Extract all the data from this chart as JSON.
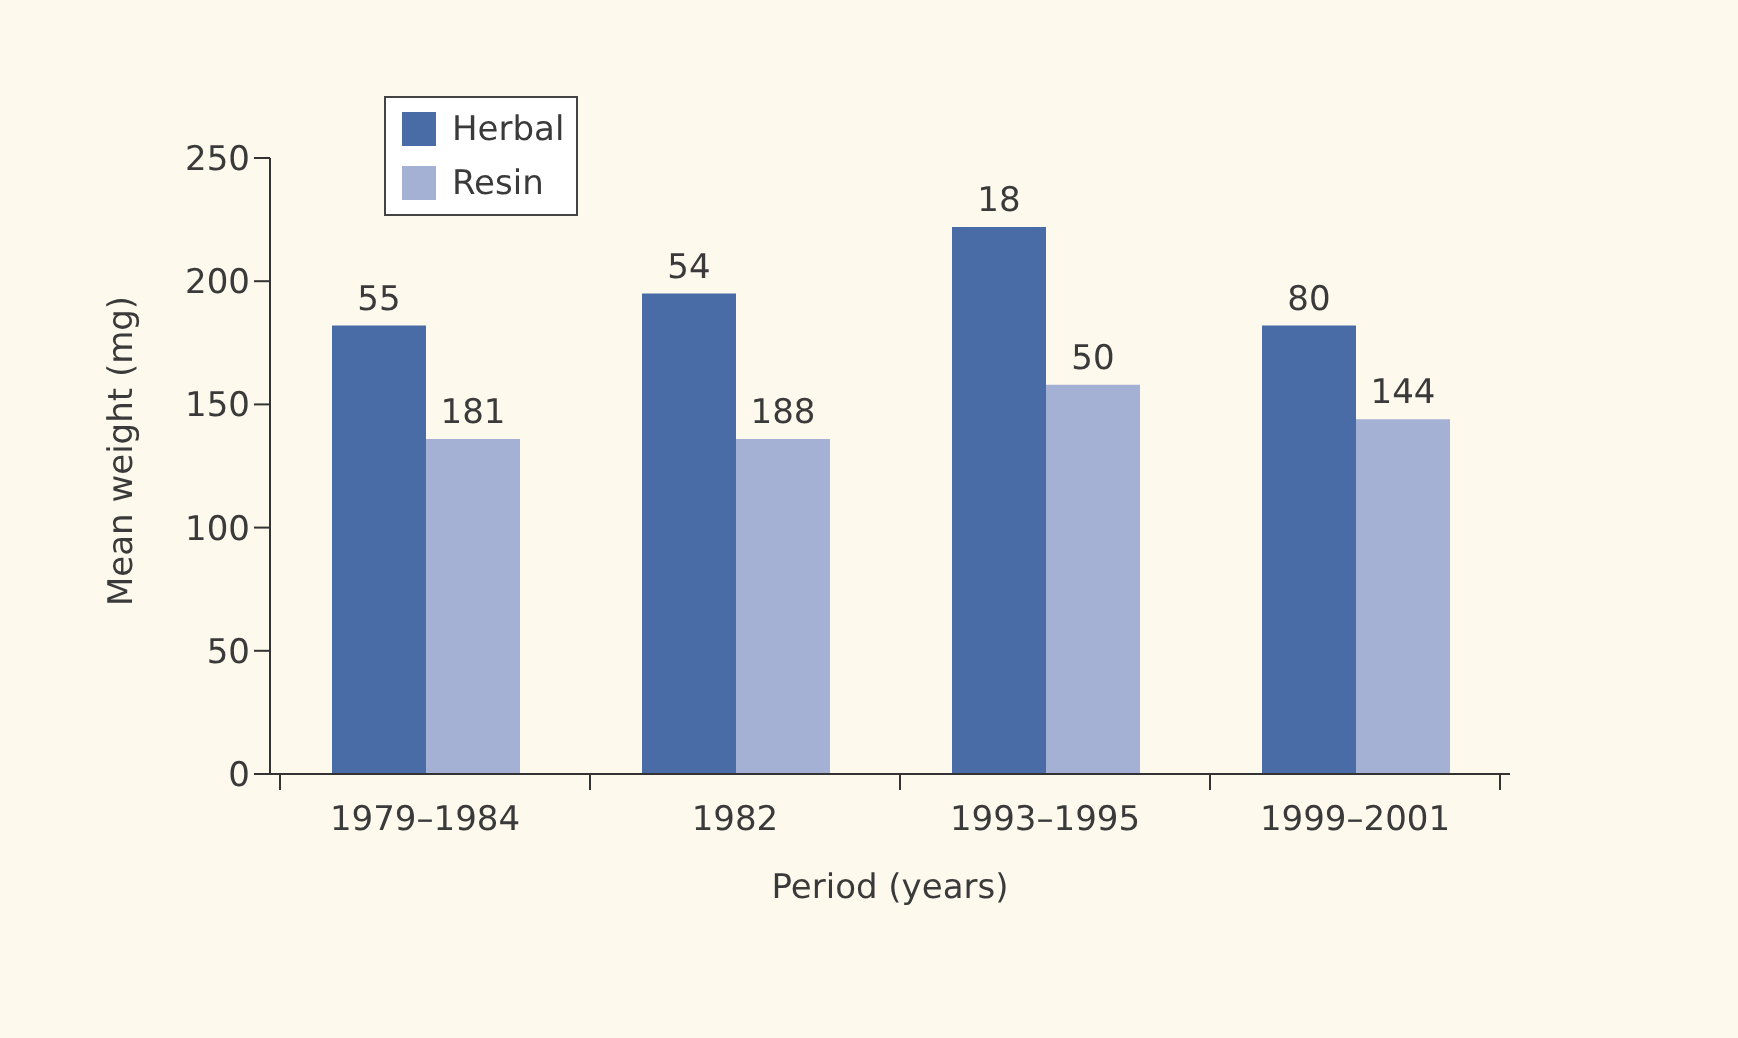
{
  "chart_data": {
    "type": "bar",
    "xlabel": "Period (years)",
    "ylabel": "Mean weight (mg)",
    "categories": [
      "1979–1984",
      "1982",
      "1993–1995",
      "1999–2001"
    ],
    "series": [
      {
        "name": "Herbal",
        "color": "#4a6ca6",
        "values": [
          182,
          195,
          222,
          182
        ]
      },
      {
        "name": "Resin",
        "color": "#a5b1d4",
        "values": [
          136,
          136,
          158,
          144
        ]
      }
    ],
    "annotations": [
      {
        "text": "55",
        "x": "1979–1984",
        "y": 182
      },
      {
        "text": "181",
        "x": "1979–1984",
        "y": 136
      },
      {
        "text": "54",
        "x": "1982",
        "y": 195
      },
      {
        "text": "188",
        "x": "1982",
        "y": 136
      },
      {
        "text": "18",
        "x": "1993–1995",
        "y": 222
      },
      {
        "text": "50",
        "x": "1993–1995",
        "y": 158
      },
      {
        "text": "80",
        "x": "1999–2001",
        "y": 182
      },
      {
        "text": "144",
        "x": "1999–2001",
        "y": 144
      }
    ],
    "ylim": [
      0,
      250
    ],
    "yticks": [
      0,
      50,
      100,
      150,
      200,
      250
    ],
    "grid": false,
    "legend": "top left"
  }
}
